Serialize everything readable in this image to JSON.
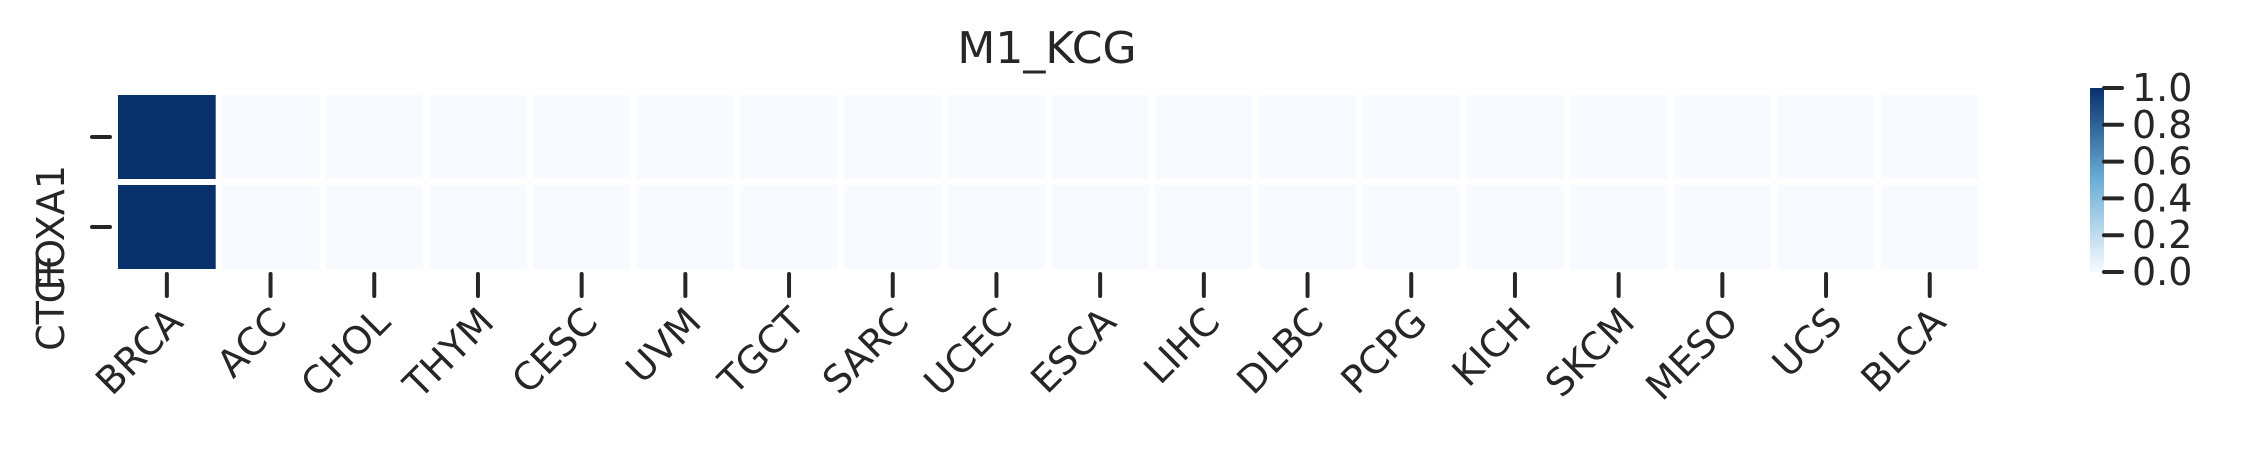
{
  "chart_data": {
    "type": "heatmap",
    "title": "M1_KCG",
    "rows": [
      "FOXA1",
      "CTCF"
    ],
    "columns": [
      "BRCA",
      "ACC",
      "CHOL",
      "THYM",
      "CESC",
      "UVM",
      "TGCT",
      "SARC",
      "UCEC",
      "ESCA",
      "LIHC",
      "DLBC",
      "PCPG",
      "KICH",
      "SKCM",
      "MESO",
      "UCS",
      "BLCA"
    ],
    "values": [
      [
        1,
        0,
        0,
        0,
        0,
        0,
        0,
        0,
        0,
        0,
        0,
        0,
        0,
        0,
        0,
        0,
        0,
        0
      ],
      [
        1,
        0,
        0,
        0,
        0,
        0,
        0,
        0,
        0,
        0,
        0,
        0,
        0,
        0,
        0,
        0,
        0,
        0
      ]
    ],
    "colorbar": {
      "range": [
        0.0,
        1.0
      ],
      "ticks": [
        "0.0",
        "0.2",
        "0.4",
        "0.6",
        "0.8",
        "1.0"
      ],
      "colormap": "Blues",
      "color_low": "#f7fbff",
      "color_high": "#08306b"
    },
    "xlabel": "",
    "ylabel": ""
  }
}
